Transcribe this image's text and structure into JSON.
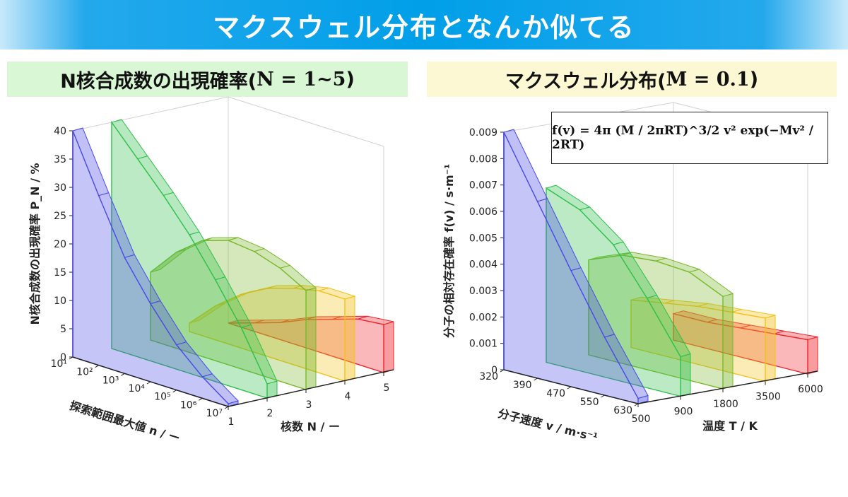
{
  "banner": {
    "title": "マクスウェル分布となんか似てる"
  },
  "left_header": {
    "prefix": "N核合成数の出現確率(",
    "math": "N = 1~5",
    "suffix": ")"
  },
  "right_header": {
    "prefix": "マクスウェル分布(",
    "math": "M = 0.1",
    "suffix": ")"
  },
  "formula": {
    "text": "f(v) = 4π (M / 2πRT)^3/2 v² exp(−Mv² / 2RT)"
  },
  "chart_data": [
    {
      "type": "area",
      "chart": "3d-ribbon",
      "title": "N核合成数の出現確率(N = 1~5)",
      "ylabel": "N核合成数の出現確率 P_N / %",
      "xlabel": "探索範囲最大値 n / ー",
      "zlabel": "核数 N / ー",
      "ylim": [
        0,
        40
      ],
      "y_ticks": [
        "0",
        "5",
        "10",
        "15",
        "20",
        "25",
        "30",
        "35",
        "40"
      ],
      "x_ticks": [
        "10¹",
        "10²",
        "10³",
        "10⁴",
        "10⁵",
        "10⁶",
        "10⁷"
      ],
      "z_ticks": [
        "1",
        "2",
        "3",
        "4",
        "5"
      ],
      "colors": [
        "#4a4ae8",
        "#2fbf4a",
        "#7ab82a",
        "#f2c21a",
        "#f0232a"
      ],
      "series": [
        {
          "name": "1",
          "values": [
            40,
            30,
            20.5,
            13.8,
            8,
            3.8,
            0.5
          ]
        },
        {
          "name": "2",
          "values": [
            40,
            35,
            30,
            24.5,
            18,
            11,
            2.5
          ]
        },
        {
          "name": "3",
          "values": [
            12,
            17,
            20.5,
            22,
            21.5,
            20,
            17.5
          ]
        },
        {
          "name": "4",
          "values": [
            1.5,
            6,
            9.5,
            12,
            13.5,
            14.5,
            14.5
          ]
        },
        {
          "name": "5",
          "values": [
            0,
            1.5,
            3,
            5,
            6.5,
            8,
            8.5
          ]
        }
      ]
    },
    {
      "type": "area",
      "chart": "3d-ribbon",
      "title": "マクスウェル分布(M = 0.1)",
      "ylabel": "分子の相対存在確率 f(v) / s·m⁻¹",
      "xlabel": "分子速度 v / m·s⁻¹",
      "zlabel": "温度 T / K",
      "ylim": [
        0,
        0.009
      ],
      "y_ticks": [
        "0",
        "0.001",
        "0.002",
        "0.003",
        "0.004",
        "0.005",
        "0.006",
        "0.007",
        "0.008",
        "0.009"
      ],
      "x_ticks": [
        "320",
        "390",
        "470",
        "550",
        "630"
      ],
      "z_ticks": [
        "500",
        "900",
        "1800",
        "3500",
        "6000"
      ],
      "colors": [
        "#4a4ae8",
        "#2fbf4a",
        "#7ab82a",
        "#f2c21a",
        "#f0232a"
      ],
      "series": [
        {
          "name": "500",
          "values": [
            0.009,
            0.0067,
            0.0044,
            0.0022,
            0.0002
          ]
        },
        {
          "name": "900",
          "values": [
            0.0066,
            0.0061,
            0.0051,
            0.0034,
            0.0015
          ]
        },
        {
          "name": "1800",
          "values": [
            0.0036,
            0.0041,
            0.0042,
            0.0041,
            0.0035
          ]
        },
        {
          "name": "3500",
          "values": [
            0.0018,
            0.002,
            0.0022,
            0.0023,
            0.0024
          ]
        },
        {
          "name": "6000",
          "values": [
            0.001,
            0.001,
            0.0011,
            0.0012,
            0.0013
          ]
        }
      ]
    }
  ]
}
